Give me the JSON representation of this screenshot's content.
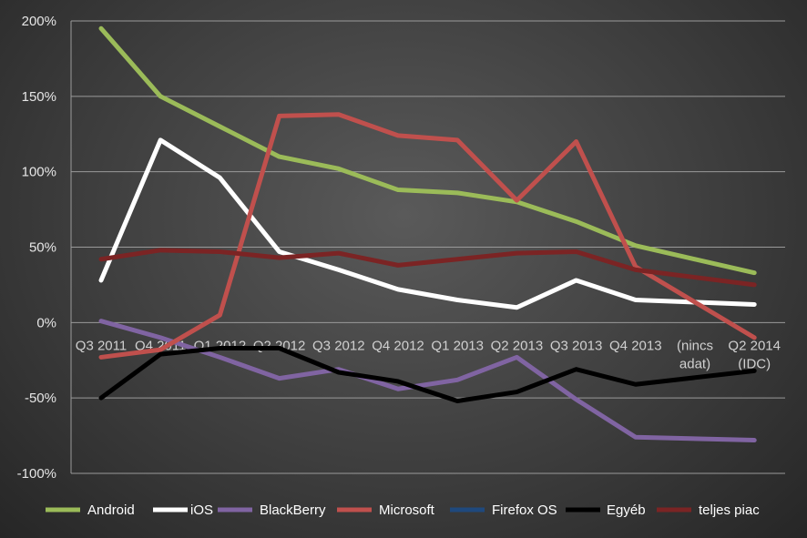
{
  "chart_data": {
    "type": "line",
    "categories": [
      "Q3 2011",
      "Q4 2011",
      "Q1 2012",
      "Q2 2012",
      "Q3 2012",
      "Q4 2012",
      "Q1 2013",
      "Q2 2013",
      "Q3 2013",
      "Q4 2013",
      "(nincs adat)",
      "Q2 2014 (IDC)"
    ],
    "category_lines": [
      [
        "Q3 2011"
      ],
      [
        "Q4 2011"
      ],
      [
        "Q1 2012"
      ],
      [
        "Q2 2012"
      ],
      [
        "Q3 2012"
      ],
      [
        "Q4 2012"
      ],
      [
        "Q1 2013"
      ],
      [
        "Q2 2013"
      ],
      [
        "Q3 2013"
      ],
      [
        "Q4 2013"
      ],
      [
        "(nincs",
        "adat)"
      ],
      [
        "Q2 2014",
        "(IDC)"
      ]
    ],
    "ylim": [
      -100,
      200
    ],
    "yticks": [
      -100,
      -50,
      0,
      50,
      100,
      150,
      200
    ],
    "ytick_labels": [
      "-100%",
      "-50%",
      "0%",
      "50%",
      "100%",
      "150%",
      "200%"
    ],
    "grid": true,
    "legend_position": "bottom",
    "series": [
      {
        "name": "Android",
        "color": "#9bbb59",
        "values": [
          195,
          150,
          130,
          110,
          102,
          88,
          86,
          80,
          67,
          51,
          null,
          33
        ]
      },
      {
        "name": "iOS",
        "color": "#ffffff",
        "values": [
          28,
          121,
          96,
          47,
          35,
          22,
          15,
          10,
          28,
          15,
          null,
          12
        ]
      },
      {
        "name": "BlackBerry",
        "color": "#8064a2",
        "values": [
          1,
          -10,
          -23,
          -37,
          -31,
          -44,
          -38,
          -23,
          -51,
          -76,
          null,
          -78
        ]
      },
      {
        "name": "Microsoft",
        "color": "#c0504d",
        "values": [
          -23,
          -18,
          5,
          137,
          138,
          124,
          121,
          81,
          120,
          37,
          null,
          -10
        ]
      },
      {
        "name": "Firefox OS",
        "color": "#1f497d",
        "values": [
          null,
          null,
          null,
          null,
          null,
          null,
          null,
          null,
          null,
          null,
          null,
          null
        ]
      },
      {
        "name": "Egyéb",
        "color": "#000000",
        "values": [
          -50,
          -21,
          -17,
          -17,
          -33,
          -39,
          -52,
          -46,
          -31,
          -41,
          null,
          -32
        ]
      },
      {
        "name": "teljes piac",
        "color": "#7b2424",
        "values": [
          42,
          48,
          47,
          43,
          46,
          38,
          42,
          46,
          47,
          35,
          null,
          25
        ]
      }
    ]
  }
}
